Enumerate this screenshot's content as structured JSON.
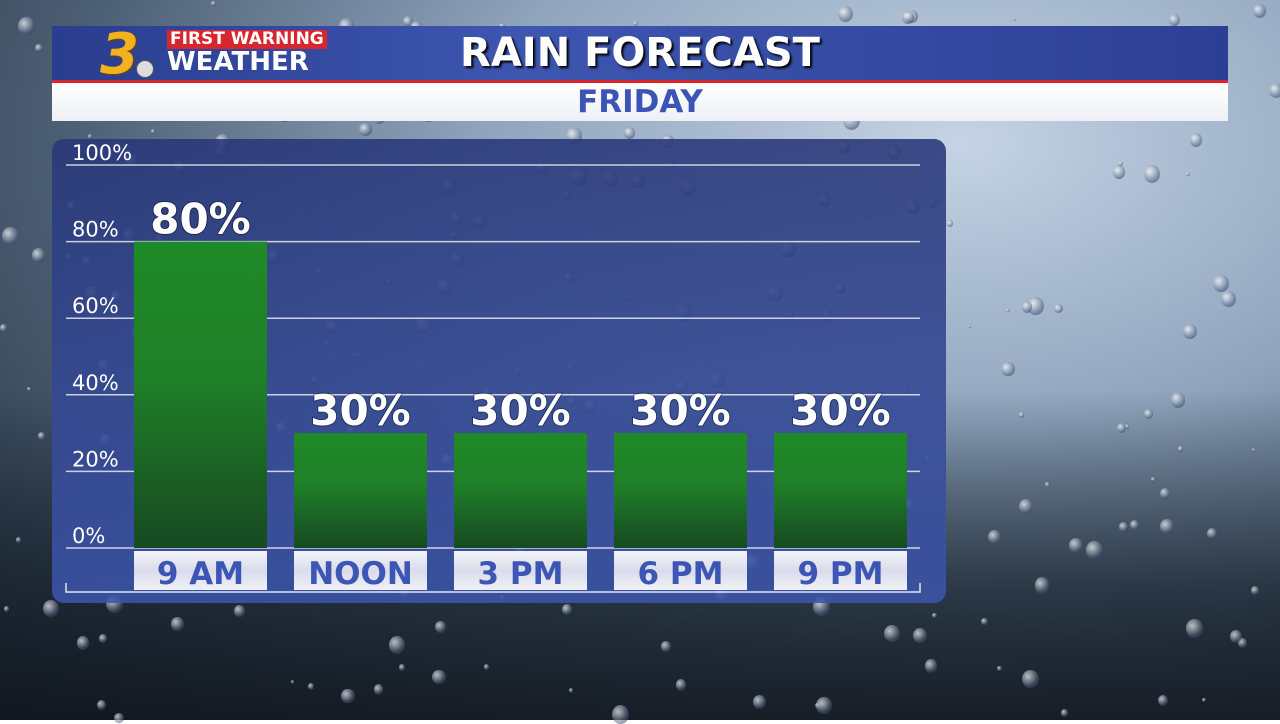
{
  "header": {
    "title": "RAIN FORECAST",
    "subtitle": "FRIDAY",
    "logo": {
      "number": "3",
      "line1": "FIRST WARNING",
      "line2": "WEATHER"
    }
  },
  "colors": {
    "bar": "#1f8a28",
    "bar_dark": "#174a22",
    "label_text": "#3d55b5",
    "header_blue": "#2d4297",
    "accent_red": "#d8262e"
  },
  "chart_data": {
    "type": "bar",
    "title": "RAIN FORECAST",
    "categories": [
      "9 AM",
      "NOON",
      "3 PM",
      "6 PM",
      "9 PM"
    ],
    "values": [
      80,
      30,
      30,
      30,
      30
    ],
    "data_labels": [
      "80%",
      "30%",
      "30%",
      "30%",
      "30%"
    ],
    "yticks": [
      "0%",
      "20%",
      "40%",
      "60%",
      "80%",
      "100%"
    ],
    "ylim": [
      0,
      100
    ],
    "grid": true
  }
}
